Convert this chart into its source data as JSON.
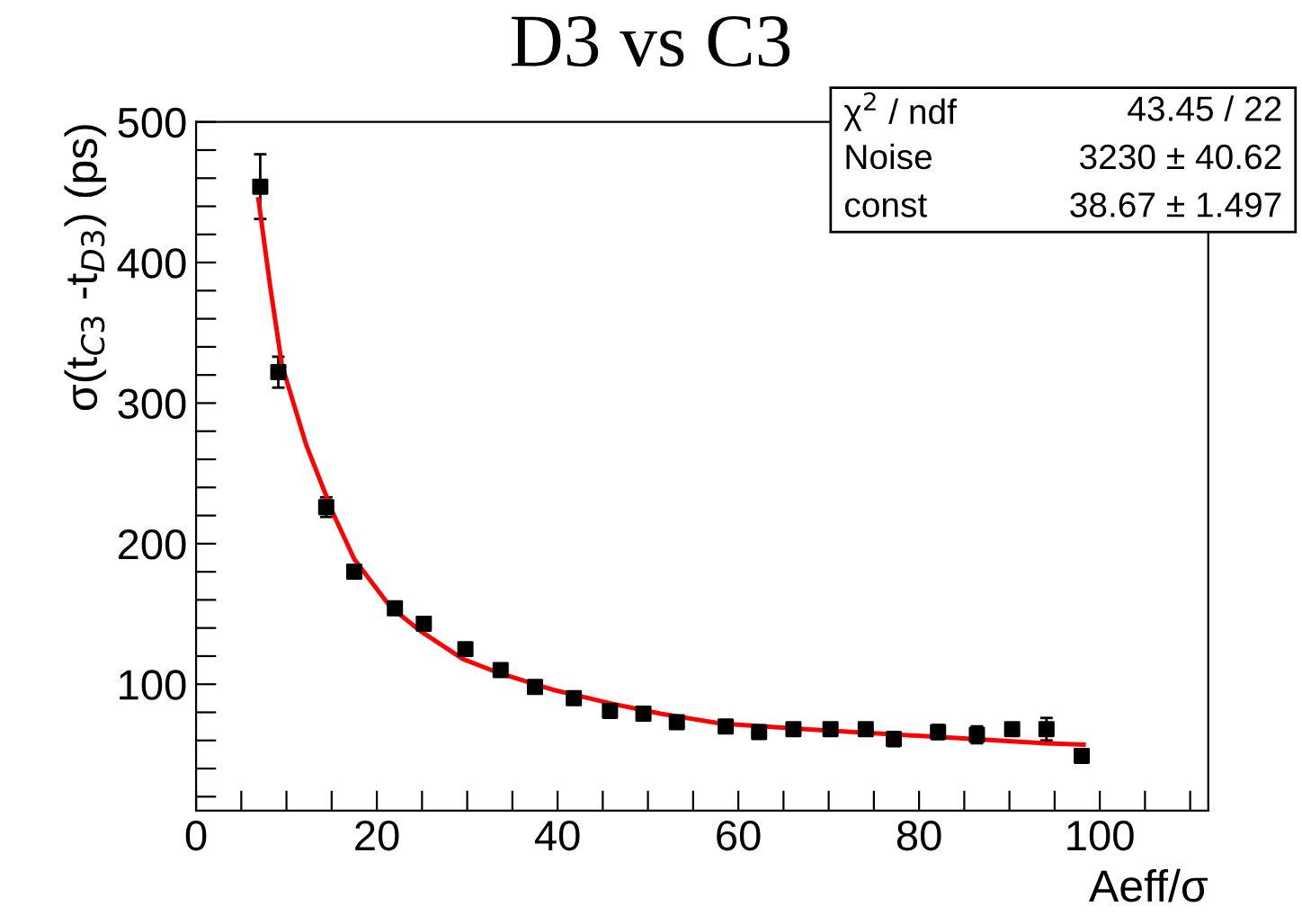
{
  "chart_data": {
    "type": "scatter",
    "title": "D3 vs C3",
    "xlabel": "Aeff/σ",
    "ylabel": "σ(t$_{C3}$ -t$_{D3}$) (ps)",
    "xlim": [
      0,
      112
    ],
    "ylim": [
      10,
      500
    ],
    "xticks": [
      0,
      {
        "value": 5,
        "label": null
      },
      {
        "value": 10,
        "label": null
      },
      {
        "value": 15,
        "label": null
      },
      20,
      {
        "value": 25,
        "label": null
      },
      {
        "value": 30,
        "label": null
      },
      {
        "value": 35,
        "label": null
      },
      40,
      {
        "value": 45,
        "label": null
      },
      {
        "value": 50,
        "label": null
      },
      {
        "value": 55,
        "label": null
      },
      60,
      {
        "value": 65,
        "label": null
      },
      {
        "value": 70,
        "label": null
      },
      {
        "value": 75,
        "label": null
      },
      80,
      {
        "value": 85,
        "label": null
      },
      {
        "value": 90,
        "label": null
      },
      {
        "value": 95,
        "label": null
      },
      100,
      {
        "value": 105,
        "label": null
      },
      {
        "value": 110,
        "label": null
      }
    ],
    "yticks": [
      {
        "value": 20,
        "label": null
      },
      {
        "value": 40,
        "label": null
      },
      {
        "value": 60,
        "label": null
      },
      {
        "value": 80,
        "label": null
      },
      100,
      {
        "value": 120,
        "label": null
      },
      {
        "value": 140,
        "label": null
      },
      {
        "value": 160,
        "label": null
      },
      {
        "value": 180,
        "label": null
      },
      200,
      {
        "value": 220,
        "label": null
      },
      {
        "value": 240,
        "label": null
      },
      {
        "value": 260,
        "label": null
      },
      {
        "value": 280,
        "label": null
      },
      300,
      {
        "value": 320,
        "label": null
      },
      {
        "value": 340,
        "label": null
      },
      {
        "value": 360,
        "label": null
      },
      {
        "value": 380,
        "label": null
      },
      400,
      {
        "value": 420,
        "label": null
      },
      {
        "value": 440,
        "label": null
      },
      {
        "value": 460,
        "label": null
      },
      {
        "value": 480,
        "label": null
      },
      500
    ],
    "grid": false,
    "series": [
      {
        "type": "scatter",
        "color": "#000000",
        "marker": "square",
        "x": [
          7.1,
          9.1,
          14.4,
          17.5,
          22.0,
          25.2,
          29.8,
          33.7,
          37.5,
          41.8,
          45.8,
          49.5,
          53.2,
          58.6,
          62.3,
          66.1,
          70.2,
          74.1,
          77.2,
          82.1,
          86.4,
          90.3,
          94.1,
          98.0
        ],
        "values": [
          454,
          322,
          226,
          180,
          154,
          143,
          125,
          110,
          98,
          90,
          81,
          79,
          73,
          70,
          66,
          68,
          68,
          68,
          61,
          66,
          64,
          68,
          68,
          49
        ],
        "errors": [
          23,
          11,
          7,
          4,
          null,
          null,
          null,
          null,
          null,
          null,
          null,
          null,
          null,
          null,
          null,
          null,
          null,
          null,
          5,
          5,
          6,
          4,
          8,
          null
        ]
      },
      {
        "type": "line",
        "color": "#ff0000",
        "marker": "none",
        "line_style": "solid",
        "x": [
          6.9,
          8.2,
          9.5,
          12.2,
          15.2,
          17.5,
          21.5,
          24.8,
          29.5,
          33.5,
          39.5,
          41.5,
          46.1,
          51.4,
          58.1,
          67.4,
          80.7,
          94.0,
          98.2
        ],
        "values": [
          445,
          383,
          327,
          270,
          221,
          189,
          155,
          138,
          118,
          108,
          96,
          93,
          86,
          79,
          72,
          68,
          63,
          58,
          57
        ]
      }
    ],
    "annotations": [
      "χ$^{2}$ / ndf",
      "43.45 / 22",
      "Noise",
      "3230 ± 40.62",
      "const",
      "38.67 ± 1.497"
    ]
  }
}
